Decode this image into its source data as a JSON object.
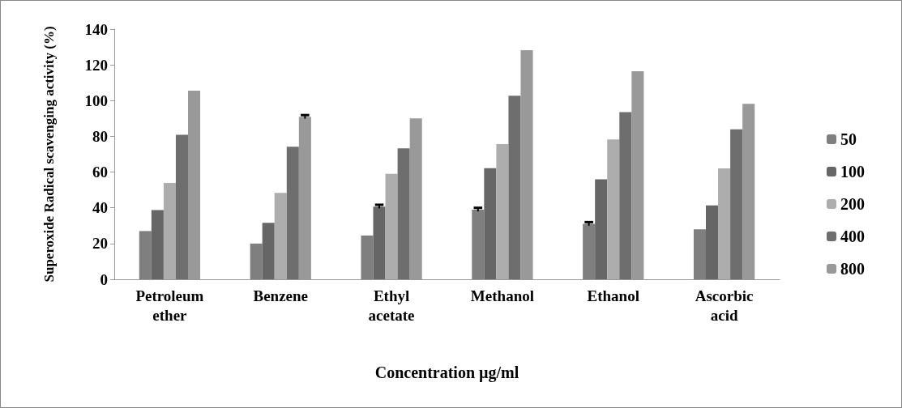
{
  "chart_data": {
    "type": "bar",
    "xlabel": "Concentration µg/ml",
    "ylabel": "Superoxide Radical scavenging activity (%)",
    "categories": [
      "Petroleum ether",
      "Benzene",
      "Ethyl acetate",
      "Methanol",
      "Ethanol",
      "Ascorbic acid"
    ],
    "series": [
      {
        "name": "50",
        "color": "#7f7f7f",
        "values": [
          27,
          20,
          24.5,
          39,
          31,
          28
        ],
        "errors": [
          null,
          null,
          null,
          1,
          1,
          null
        ]
      },
      {
        "name": "100",
        "color": "#666666",
        "values": [
          38.7,
          31.6,
          40.7,
          62.2,
          56,
          41.3
        ],
        "errors": [
          null,
          null,
          1,
          null,
          null,
          null
        ]
      },
      {
        "name": "200",
        "color": "#adadad",
        "values": [
          53.9,
          48.4,
          59,
          75.7,
          78.3,
          62.1
        ]
      },
      {
        "name": "400",
        "color": "#6e6e6e",
        "values": [
          80.9,
          74.2,
          73.3,
          102.7,
          93.6,
          83.9
        ]
      },
      {
        "name": "800",
        "color": "#999999",
        "values": [
          105.6,
          90.9,
          90,
          128.2,
          116.4,
          98.2
        ],
        "errors": [
          null,
          1,
          null,
          null,
          null,
          null
        ]
      }
    ],
    "ylim": [
      0,
      140
    ],
    "yticks": [
      0,
      20,
      40,
      60,
      80,
      100,
      120,
      140
    ],
    "grid": false,
    "legend": "right"
  }
}
